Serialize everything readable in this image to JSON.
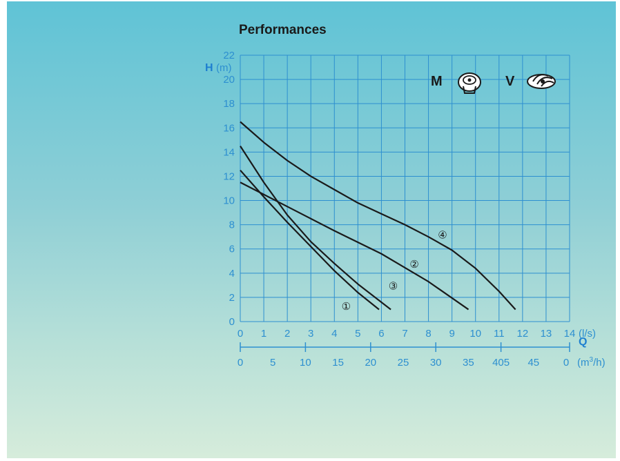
{
  "chart_data": {
    "type": "line",
    "title": "Performances",
    "ylabel_symbol": "H",
    "ylabel_unit": "(m)",
    "xlabel_symbol": "Q",
    "x_unit_ls": "(l/s)",
    "x_unit_m3h": "(m3/h)",
    "ylim": [
      0,
      22
    ],
    "xlim": [
      0,
      14
    ],
    "y_ticks": [
      "0",
      "2",
      "4",
      "6",
      "8",
      "10",
      "12",
      "14",
      "16",
      "18",
      "20",
      "22"
    ],
    "x_ticks_ls": [
      "0",
      "1",
      "2",
      "3",
      "4",
      "5",
      "6",
      "7",
      "8",
      "9",
      "10",
      "11",
      "12",
      "13",
      "14"
    ],
    "x_ticks_m3h": [
      "0",
      "5",
      "10",
      "15",
      "20",
      "25",
      "30",
      "35",
      "405",
      "45",
      "0"
    ],
    "impeller_labels": [
      "M",
      "V"
    ],
    "grid": true,
    "series": [
      {
        "name": "①",
        "points": [
          [
            0,
            12.5
          ],
          [
            1,
            10.3
          ],
          [
            2,
            8.2
          ],
          [
            3,
            6.2
          ],
          [
            4,
            4.2
          ],
          [
            5,
            2.4
          ],
          [
            5.9,
            1.0
          ]
        ]
      },
      {
        "name": "②",
        "points": [
          [
            0,
            11.5
          ],
          [
            2,
            9.5
          ],
          [
            4,
            7.5
          ],
          [
            6,
            5.6
          ],
          [
            8,
            3.3
          ],
          [
            9.7,
            1.0
          ]
        ]
      },
      {
        "name": "③",
        "points": [
          [
            0,
            14.5
          ],
          [
            1,
            11.5
          ],
          [
            2,
            8.8
          ],
          [
            3,
            6.6
          ],
          [
            4,
            4.8
          ],
          [
            5,
            3.1
          ],
          [
            6.4,
            1.0
          ]
        ]
      },
      {
        "name": "④",
        "points": [
          [
            0,
            16.5
          ],
          [
            1,
            14.8
          ],
          [
            2,
            13.3
          ],
          [
            3,
            12.0
          ],
          [
            4,
            10.9
          ],
          [
            5,
            9.8
          ],
          [
            6,
            8.9
          ],
          [
            7,
            8.0
          ],
          [
            8,
            7.0
          ],
          [
            9,
            5.9
          ],
          [
            10,
            4.4
          ],
          [
            11,
            2.5
          ],
          [
            11.7,
            1.0
          ]
        ]
      }
    ]
  }
}
